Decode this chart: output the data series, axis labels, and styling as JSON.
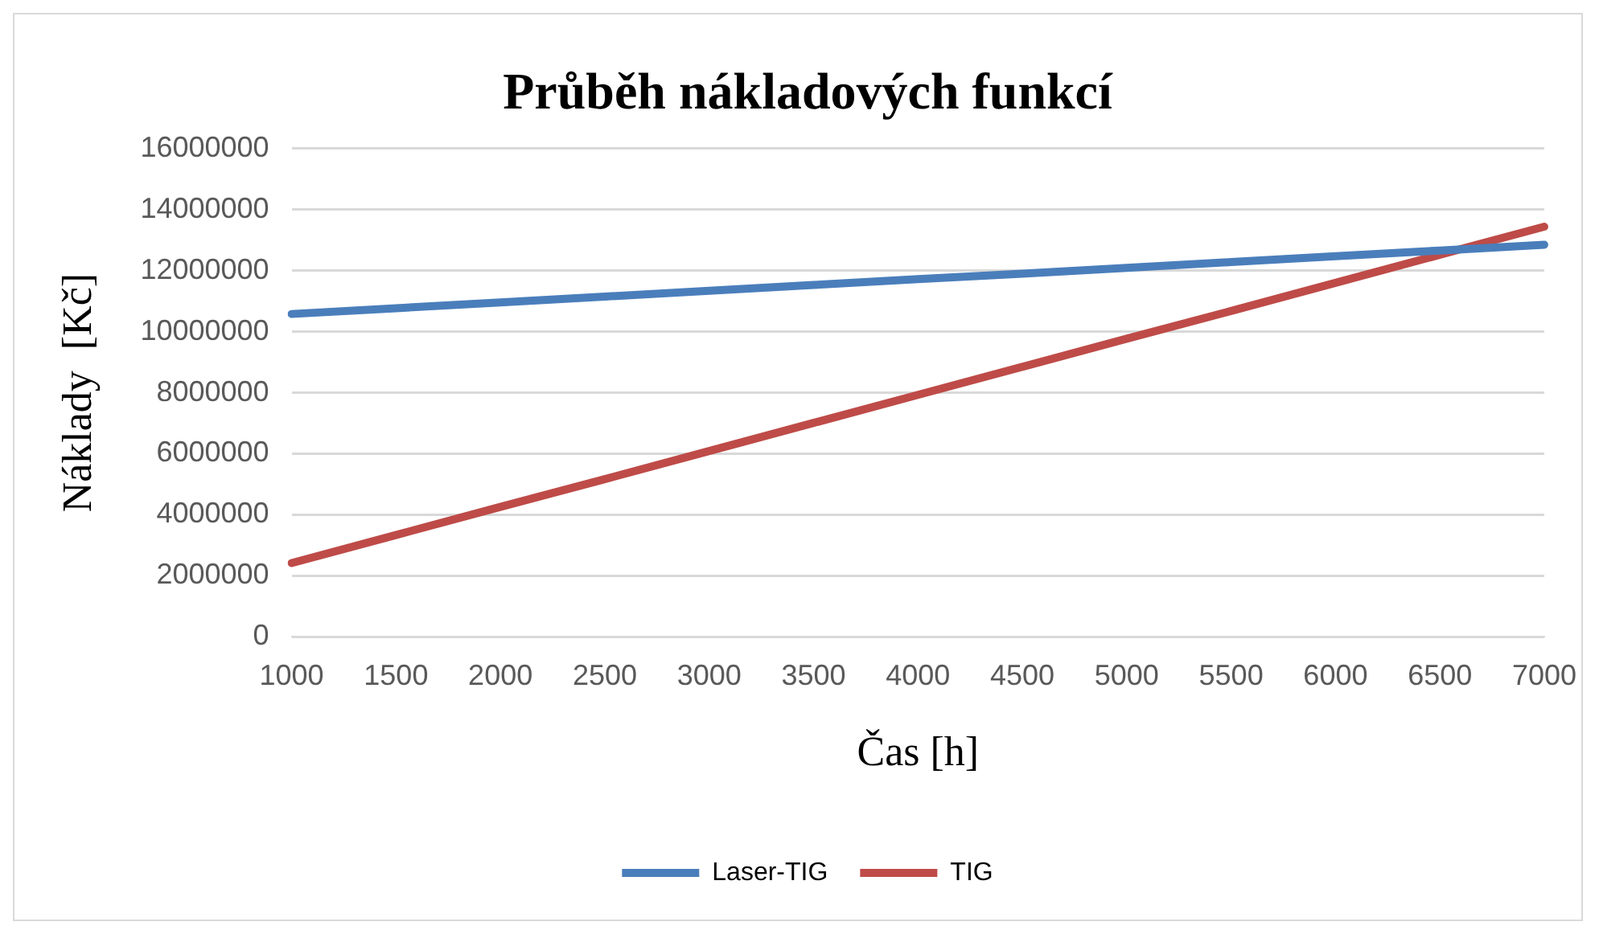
{
  "chart_data": {
    "type": "line",
    "title": "Průběh nákladových funkcí",
    "xlabel": "Čas [h]",
    "ylabel": "Náklady  [Kč]",
    "categories": [
      "1000",
      "1500",
      "2000",
      "2500",
      "3000",
      "3500",
      "4000",
      "4500",
      "5000",
      "5500",
      "6000",
      "6500",
      "7000"
    ],
    "series": [
      {
        "name": "Laser-TIG",
        "color": "#4a7ebb",
        "values": [
          10580000,
          10770000,
          10960000,
          11150000,
          11340000,
          11530000,
          11720000,
          11900000,
          12090000,
          12280000,
          12470000,
          12660000,
          12850000
        ]
      },
      {
        "name": "TIG",
        "color": "#be4b48",
        "values": [
          2420000,
          3340000,
          4260000,
          5170000,
          6090000,
          7010000,
          7930000,
          8850000,
          9770000,
          10680000,
          11600000,
          12520000,
          13440000
        ]
      }
    ],
    "ylim": [
      0,
      16000000
    ],
    "yticks": [
      0,
      2000000,
      4000000,
      6000000,
      8000000,
      10000000,
      12000000,
      14000000,
      16000000
    ],
    "grid": "y",
    "legend": "bottom",
    "marker": "none",
    "line_style": "solid"
  }
}
